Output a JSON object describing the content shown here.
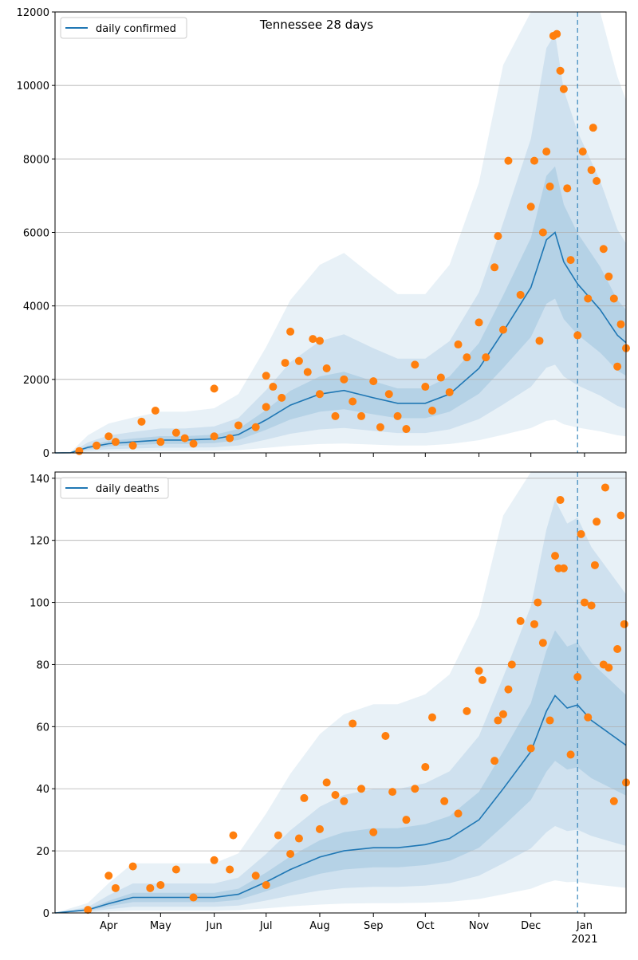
{
  "chart_data": [
    {
      "type": "line",
      "title": "Tennessee 28 days",
      "xlabel": "",
      "ylabel": "",
      "x_range": [
        "2020-03-01",
        "2021-01-25"
      ],
      "ylim": [
        0,
        12000
      ],
      "y_ticks": [
        0,
        2000,
        4000,
        6000,
        8000,
        10000,
        12000
      ],
      "x_ticks": [
        {
          "date": "2020-04-01",
          "label": "Apr"
        },
        {
          "date": "2020-05-01",
          "label": "May"
        },
        {
          "date": "2020-06-01",
          "label": "Jun"
        },
        {
          "date": "2020-07-01",
          "label": "Jul"
        },
        {
          "date": "2020-08-01",
          "label": "Aug"
        },
        {
          "date": "2020-09-01",
          "label": "Sep"
        },
        {
          "date": "2020-10-01",
          "label": "Oct"
        },
        {
          "date": "2020-11-01",
          "label": "Nov"
        },
        {
          "date": "2020-12-01",
          "label": "Dec"
        },
        {
          "date": "2021-01-01",
          "label": "Jan",
          "sub": "2021"
        }
      ],
      "grid": "horizontal",
      "legend": "top-left",
      "vline_date": "2020-12-28",
      "series": [
        {
          "name": "daily confirmed",
          "color": "#1f77b4",
          "points": [
            [
              "2020-03-01",
              0
            ],
            [
              "2020-03-10",
              5
            ],
            [
              "2020-03-20",
              150
            ],
            [
              "2020-04-01",
              250
            ],
            [
              "2020-04-15",
              300
            ],
            [
              "2020-05-01",
              350
            ],
            [
              "2020-05-15",
              350
            ],
            [
              "2020-06-01",
              380
            ],
            [
              "2020-06-15",
              500
            ],
            [
              "2020-07-01",
              900
            ],
            [
              "2020-07-15",
              1300
            ],
            [
              "2020-08-01",
              1600
            ],
            [
              "2020-08-15",
              1700
            ],
            [
              "2020-09-01",
              1500
            ],
            [
              "2020-09-15",
              1350
            ],
            [
              "2020-10-01",
              1350
            ],
            [
              "2020-10-15",
              1600
            ],
            [
              "2020-11-01",
              2300
            ],
            [
              "2020-11-15",
              3300
            ],
            [
              "2020-12-01",
              4500
            ],
            [
              "2020-12-10",
              5800
            ],
            [
              "2020-12-15",
              6000
            ],
            [
              "2020-12-20",
              5200
            ],
            [
              "2020-12-28",
              4600
            ],
            [
              "2021-01-10",
              3900
            ],
            [
              "2021-01-20",
              3200
            ],
            [
              "2021-01-25",
              3000
            ]
          ]
        },
        {
          "name": "",
          "color": "#ff7f0e",
          "kind": "scatter",
          "points": [
            [
              "2020-03-15",
              50
            ],
            [
              "2020-03-25",
              200
            ],
            [
              "2020-04-01",
              450
            ],
            [
              "2020-04-05",
              300
            ],
            [
              "2020-04-15",
              200
            ],
            [
              "2020-04-20",
              850
            ],
            [
              "2020-04-28",
              1150
            ],
            [
              "2020-05-01",
              300
            ],
            [
              "2020-05-10",
              550
            ],
            [
              "2020-05-15",
              400
            ],
            [
              "2020-05-20",
              250
            ],
            [
              "2020-06-01",
              450
            ],
            [
              "2020-06-01",
              1750
            ],
            [
              "2020-06-10",
              400
            ],
            [
              "2020-06-15",
              750
            ],
            [
              "2020-06-25",
              700
            ],
            [
              "2020-07-01",
              2100
            ],
            [
              "2020-07-01",
              1250
            ],
            [
              "2020-07-05",
              1800
            ],
            [
              "2020-07-10",
              1500
            ],
            [
              "2020-07-12",
              2450
            ],
            [
              "2020-07-15",
              3300
            ],
            [
              "2020-07-20",
              2500
            ],
            [
              "2020-07-25",
              2200
            ],
            [
              "2020-07-28",
              3100
            ],
            [
              "2020-08-01",
              1600
            ],
            [
              "2020-08-01",
              3050
            ],
            [
              "2020-08-05",
              2300
            ],
            [
              "2020-08-10",
              1000
            ],
            [
              "2020-08-15",
              2000
            ],
            [
              "2020-08-20",
              1400
            ],
            [
              "2020-08-25",
              1000
            ],
            [
              "2020-09-01",
              1950
            ],
            [
              "2020-09-05",
              700
            ],
            [
              "2020-09-10",
              1600
            ],
            [
              "2020-09-15",
              1000
            ],
            [
              "2020-09-20",
              650
            ],
            [
              "2020-09-25",
              2400
            ],
            [
              "2020-10-01",
              1800
            ],
            [
              "2020-10-05",
              1150
            ],
            [
              "2020-10-10",
              2050
            ],
            [
              "2020-10-15",
              1650
            ],
            [
              "2020-10-20",
              2950
            ],
            [
              "2020-10-25",
              2600
            ],
            [
              "2020-11-01",
              3550
            ],
            [
              "2020-11-05",
              2600
            ],
            [
              "2020-11-10",
              5050
            ],
            [
              "2020-11-12",
              5900
            ],
            [
              "2020-11-15",
              3350
            ],
            [
              "2020-11-18",
              7950
            ],
            [
              "2020-11-25",
              4300
            ],
            [
              "2020-12-01",
              6700
            ],
            [
              "2020-12-03",
              7950
            ],
            [
              "2020-12-06",
              3050
            ],
            [
              "2020-12-08",
              6000
            ],
            [
              "2020-12-10",
              8200
            ],
            [
              "2020-12-12",
              7250
            ],
            [
              "2020-12-14",
              11350
            ],
            [
              "2020-12-16",
              11400
            ],
            [
              "2020-12-18",
              10400
            ],
            [
              "2020-12-20",
              9900
            ],
            [
              "2020-12-22",
              7200
            ],
            [
              "2020-12-24",
              5250
            ],
            [
              "2020-12-28",
              3200
            ],
            [
              "2020-12-31",
              8200
            ],
            [
              "2021-01-03",
              4200
            ],
            [
              "2021-01-05",
              7700
            ],
            [
              "2021-01-06",
              8850
            ],
            [
              "2021-01-08",
              7400
            ],
            [
              "2021-01-12",
              5550
            ],
            [
              "2021-01-15",
              4800
            ],
            [
              "2021-01-18",
              4200
            ],
            [
              "2021-01-20",
              2350
            ],
            [
              "2021-01-22",
              3500
            ],
            [
              "2021-01-25",
              2850
            ]
          ]
        }
      ]
    },
    {
      "type": "line",
      "title": "",
      "xlabel": "",
      "ylabel": "",
      "x_range": [
        "2020-03-01",
        "2021-01-25"
      ],
      "ylim": [
        0,
        142
      ],
      "y_ticks": [
        0,
        20,
        40,
        60,
        80,
        100,
        120,
        140
      ],
      "x_ticks": [
        {
          "date": "2020-04-01",
          "label": "Apr"
        },
        {
          "date": "2020-05-01",
          "label": "May"
        },
        {
          "date": "2020-06-01",
          "label": "Jun"
        },
        {
          "date": "2020-07-01",
          "label": "Jul"
        },
        {
          "date": "2020-08-01",
          "label": "Aug"
        },
        {
          "date": "2020-09-01",
          "label": "Sep"
        },
        {
          "date": "2020-10-01",
          "label": "Oct"
        },
        {
          "date": "2020-11-01",
          "label": "Nov"
        },
        {
          "date": "2020-12-01",
          "label": "Dec"
        },
        {
          "date": "2021-01-01",
          "label": "Jan",
          "sub": "2021"
        }
      ],
      "grid": "horizontal",
      "legend": "top-left",
      "vline_date": "2020-12-28",
      "series": [
        {
          "name": "daily deaths",
          "color": "#1f77b4",
          "points": [
            [
              "2020-03-01",
              0
            ],
            [
              "2020-03-20",
              1
            ],
            [
              "2020-04-01",
              3
            ],
            [
              "2020-04-15",
              5
            ],
            [
              "2020-05-01",
              5
            ],
            [
              "2020-05-15",
              5
            ],
            [
              "2020-06-01",
              5
            ],
            [
              "2020-06-15",
              6
            ],
            [
              "2020-07-01",
              10
            ],
            [
              "2020-07-15",
              14
            ],
            [
              "2020-08-01",
              18
            ],
            [
              "2020-08-15",
              20
            ],
            [
              "2020-09-01",
              21
            ],
            [
              "2020-09-15",
              21
            ],
            [
              "2020-10-01",
              22
            ],
            [
              "2020-10-15",
              24
            ],
            [
              "2020-11-01",
              30
            ],
            [
              "2020-11-15",
              40
            ],
            [
              "2020-12-01",
              52
            ],
            [
              "2020-12-10",
              65
            ],
            [
              "2020-12-15",
              70
            ],
            [
              "2020-12-22",
              66
            ],
            [
              "2020-12-28",
              67
            ],
            [
              "2021-01-05",
              62
            ],
            [
              "2021-01-15",
              58
            ],
            [
              "2021-01-25",
              54
            ]
          ]
        },
        {
          "name": "",
          "color": "#ff7f0e",
          "kind": "scatter",
          "points": [
            [
              "2020-03-20",
              1
            ],
            [
              "2020-04-01",
              12
            ],
            [
              "2020-04-05",
              8
            ],
            [
              "2020-04-15",
              15
            ],
            [
              "2020-04-25",
              8
            ],
            [
              "2020-05-01",
              9
            ],
            [
              "2020-05-10",
              14
            ],
            [
              "2020-05-20",
              5
            ],
            [
              "2020-06-01",
              17
            ],
            [
              "2020-06-10",
              14
            ],
            [
              "2020-06-12",
              25
            ],
            [
              "2020-06-25",
              12
            ],
            [
              "2020-07-01",
              9
            ],
            [
              "2020-07-08",
              25
            ],
            [
              "2020-07-15",
              19
            ],
            [
              "2020-07-20",
              24
            ],
            [
              "2020-07-23",
              37
            ],
            [
              "2020-08-01",
              27
            ],
            [
              "2020-08-05",
              42
            ],
            [
              "2020-08-10",
              38
            ],
            [
              "2020-08-15",
              36
            ],
            [
              "2020-08-20",
              61
            ],
            [
              "2020-08-25",
              40
            ],
            [
              "2020-09-01",
              26
            ],
            [
              "2020-09-08",
              57
            ],
            [
              "2020-09-12",
              39
            ],
            [
              "2020-09-20",
              30
            ],
            [
              "2020-09-25",
              40
            ],
            [
              "2020-10-01",
              47
            ],
            [
              "2020-10-05",
              63
            ],
            [
              "2020-10-12",
              36
            ],
            [
              "2020-10-20",
              32
            ],
            [
              "2020-10-25",
              65
            ],
            [
              "2020-11-01",
              78
            ],
            [
              "2020-11-03",
              75
            ],
            [
              "2020-11-10",
              49
            ],
            [
              "2020-11-12",
              62
            ],
            [
              "2020-11-15",
              64
            ],
            [
              "2020-11-18",
              72
            ],
            [
              "2020-11-20",
              80
            ],
            [
              "2020-11-25",
              94
            ],
            [
              "2020-12-01",
              53
            ],
            [
              "2020-12-03",
              93
            ],
            [
              "2020-12-05",
              100
            ],
            [
              "2020-12-08",
              87
            ],
            [
              "2020-12-12",
              62
            ],
            [
              "2020-12-15",
              115
            ],
            [
              "2020-12-17",
              111
            ],
            [
              "2020-12-18",
              133
            ],
            [
              "2020-12-20",
              111
            ],
            [
              "2020-12-24",
              51
            ],
            [
              "2020-12-28",
              76
            ],
            [
              "2020-12-30",
              122
            ],
            [
              "2021-01-01",
              100
            ],
            [
              "2021-01-03",
              63
            ],
            [
              "2021-01-05",
              99
            ],
            [
              "2021-01-07",
              112
            ],
            [
              "2021-01-08",
              126
            ],
            [
              "2021-01-12",
              80
            ],
            [
              "2021-01-13",
              137
            ],
            [
              "2021-01-15",
              79
            ],
            [
              "2021-01-18",
              36
            ],
            [
              "2021-01-20",
              85
            ],
            [
              "2021-01-22",
              128
            ],
            [
              "2021-01-24",
              93
            ],
            [
              "2021-01-25",
              42
            ]
          ]
        }
      ]
    }
  ]
}
